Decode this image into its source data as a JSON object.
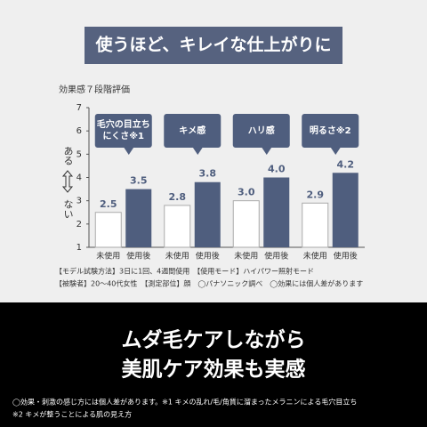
{
  "chart_data": {
    "type": "bar",
    "title": "使うほど、キレイな仕上がりに",
    "subtitle": "効果感７段階評価",
    "categories": [
      "毛穴の目立ちにくさ※1",
      "キメ感",
      "ハリ感",
      "明るさ※2"
    ],
    "series": [
      {
        "name": "未使用",
        "color": "#ffffff",
        "values": [
          2.5,
          2.8,
          3.0,
          2.9
        ],
        "value_labels": [
          "2.5",
          "2.8",
          "3.0",
          "2.9"
        ]
      },
      {
        "name": "使用後",
        "color": "#4f5e7e",
        "values": [
          3.5,
          3.8,
          4.0,
          4.2
        ],
        "value_labels": [
          "3.5",
          "3.8",
          "4.0",
          "4.2"
        ]
      }
    ],
    "ylim": [
      1,
      7
    ],
    "yticks": [
      1,
      2,
      3,
      4,
      5,
      6,
      7
    ],
    "ylabel_top": "ある",
    "ylabel_bottom": "ない",
    "notes": [
      "【モデル試験方法】3日に1回、4週間使用　【使用モード】ハイパワー照射モード",
      "【被験者】20〜40代女性　【測定部位】顔　◯パナソニック調べ　◯効果には個人差があります"
    ]
  },
  "headline": [
    "ムダ毛ケアしながら",
    "美肌ケア効果も実感"
  ],
  "footnotes": [
    "◯効果・刺激の感じ方には個人差があります。※1 キメの乱れ/毛/角質に溜まったメラニンによる毛穴目立ち",
    "※2 キメが整うことによる肌の見え方"
  ]
}
